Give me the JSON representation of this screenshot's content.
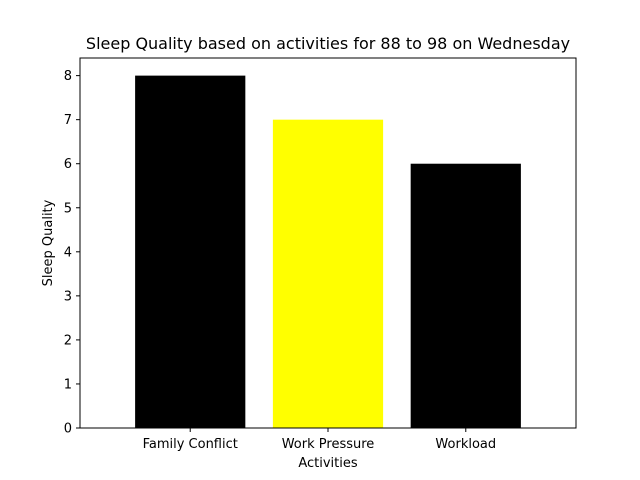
{
  "chart_data": {
    "type": "bar",
    "title": "Sleep Quality based on activities for 88 to 98 on Wednesday",
    "xlabel": "Activities",
    "ylabel": "Sleep Quality",
    "categories": [
      "Family Conflict",
      "Work Pressure",
      "Workload"
    ],
    "values": [
      8,
      7,
      6
    ],
    "colors": [
      "#000000",
      "#ffff00",
      "#000000"
    ],
    "ylim": [
      0,
      8.4
    ],
    "yticks": [
      "0",
      "1",
      "2",
      "3",
      "4",
      "5",
      "6",
      "7",
      "8"
    ],
    "grid": false,
    "legend": "none"
  }
}
